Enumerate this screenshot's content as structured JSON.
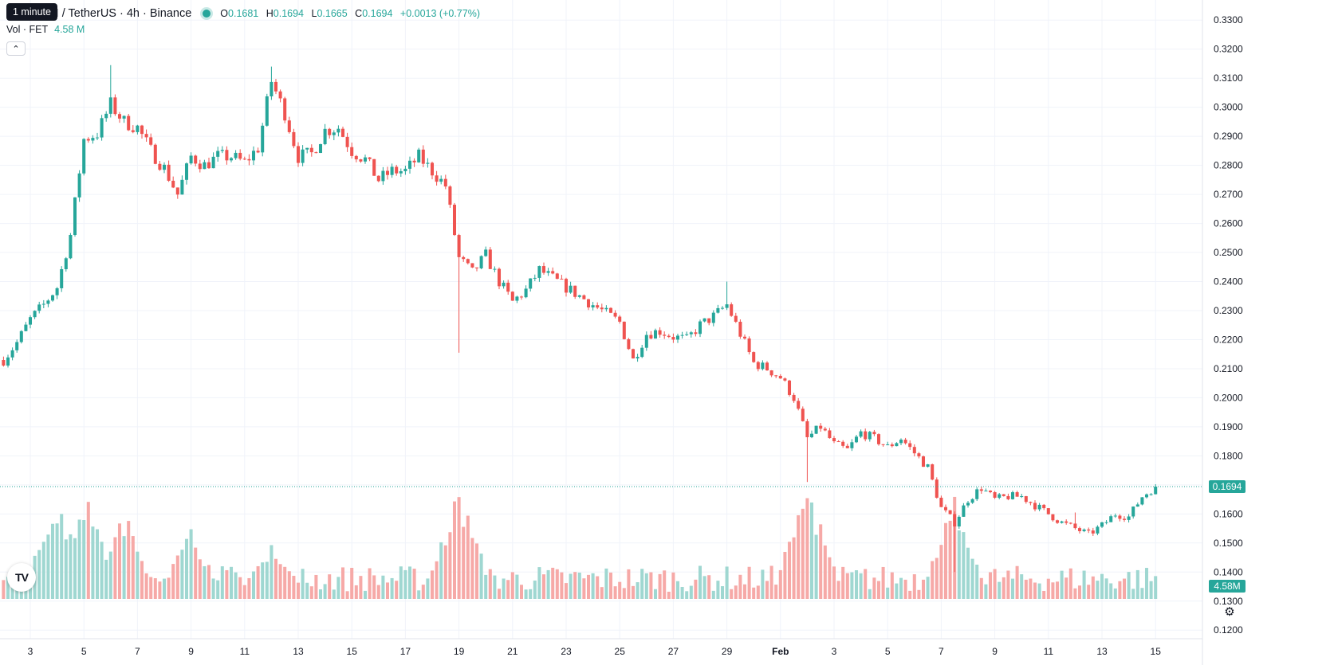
{
  "header": {
    "tooltip": "1 minute",
    "title": "AI / TetherUS · 4h · Binance",
    "ohlc": {
      "o_label": "O",
      "o": "0.1681",
      "h_label": "H",
      "h": "0.1694",
      "l_label": "L",
      "l": "0.1665",
      "c_label": "C",
      "c": "0.1694",
      "change": "+0.0013 (+0.77%)"
    },
    "volume_label": "Vol · FET",
    "volume_value": "4.58 M"
  },
  "price_tag": "0.1694",
  "volume_tag": "4.58M",
  "icons": {
    "collapse": "chevron-up-icon",
    "logo": "tradingview-logo",
    "settings": "gear-icon"
  },
  "colors": {
    "up": "#26a69a",
    "down": "#ef5350",
    "up_volume": "#9fd7d1",
    "down_volume": "#f6a9a7",
    "grid": "#f0f3fa"
  },
  "chart_data": {
    "type": "candlestick",
    "interval": "4h",
    "ylim": [
      0.125,
      0.335
    ],
    "y_ticks": [
      "0.3300",
      "0.3200",
      "0.3100",
      "0.3000",
      "0.2900",
      "0.2800",
      "0.2700",
      "0.2600",
      "0.2500",
      "0.2400",
      "0.2300",
      "0.2200",
      "0.2100",
      "0.2000",
      "0.1900",
      "0.1800",
      "0.1700",
      "0.1600",
      "0.1500",
      "0.1400",
      "0.1300",
      "0.1200"
    ],
    "x_ticks": [
      "3",
      "5",
      "7",
      "9",
      "11",
      "13",
      "15",
      "17",
      "19",
      "21",
      "23",
      "25",
      "27",
      "29",
      "Feb",
      "3",
      "5",
      "7",
      "9",
      "11",
      "13",
      "15"
    ],
    "last_price": 0.1694,
    "anchors": [
      {
        "day": 2.0,
        "price": 0.213
      },
      {
        "day": 2.5,
        "price": 0.219
      },
      {
        "day": 3.0,
        "price": 0.227
      },
      {
        "day": 3.5,
        "price": 0.232
      },
      {
        "day": 4.0,
        "price": 0.238
      },
      {
        "day": 4.5,
        "price": 0.256
      },
      {
        "day": 5.0,
        "price": 0.289
      },
      {
        "day": 5.5,
        "price": 0.291
      },
      {
        "day": 6.0,
        "price": 0.301
      },
      {
        "day": 6.5,
        "price": 0.295
      },
      {
        "day": 7.0,
        "price": 0.293
      },
      {
        "day": 7.5,
        "price": 0.285
      },
      {
        "day": 8.0,
        "price": 0.279
      },
      {
        "day": 8.5,
        "price": 0.27
      },
      {
        "day": 9.0,
        "price": 0.283
      },
      {
        "day": 9.5,
        "price": 0.28
      },
      {
        "day": 10.0,
        "price": 0.283
      },
      {
        "day": 10.5,
        "price": 0.283
      },
      {
        "day": 11.0,
        "price": 0.281
      },
      {
        "day": 11.5,
        "price": 0.286
      },
      {
        "day": 12.0,
        "price": 0.309
      },
      {
        "day": 12.5,
        "price": 0.298
      },
      {
        "day": 13.0,
        "price": 0.283
      },
      {
        "day": 13.5,
        "price": 0.284
      },
      {
        "day": 14.0,
        "price": 0.292
      },
      {
        "day": 14.5,
        "price": 0.293
      },
      {
        "day": 15.0,
        "price": 0.285
      },
      {
        "day": 15.5,
        "price": 0.282
      },
      {
        "day": 16.0,
        "price": 0.275
      },
      {
        "day": 16.5,
        "price": 0.278
      },
      {
        "day": 17.0,
        "price": 0.278
      },
      {
        "day": 17.5,
        "price": 0.283
      },
      {
        "day": 18.0,
        "price": 0.278
      },
      {
        "day": 18.5,
        "price": 0.273
      },
      {
        "day": 19.0,
        "price": 0.248
      },
      {
        "day": 19.5,
        "price": 0.243
      },
      {
        "day": 20.0,
        "price": 0.249
      },
      {
        "day": 20.5,
        "price": 0.24
      },
      {
        "day": 21.0,
        "price": 0.233
      },
      {
        "day": 21.5,
        "price": 0.237
      },
      {
        "day": 22.0,
        "price": 0.244
      },
      {
        "day": 22.5,
        "price": 0.241
      },
      {
        "day": 23.0,
        "price": 0.238
      },
      {
        "day": 23.5,
        "price": 0.235
      },
      {
        "day": 24.0,
        "price": 0.232
      },
      {
        "day": 24.5,
        "price": 0.229
      },
      {
        "day": 25.0,
        "price": 0.226
      },
      {
        "day": 25.5,
        "price": 0.213
      },
      {
        "day": 26.0,
        "price": 0.222
      },
      {
        "day": 26.5,
        "price": 0.223
      },
      {
        "day": 27.0,
        "price": 0.221
      },
      {
        "day": 27.5,
        "price": 0.22
      },
      {
        "day": 28.0,
        "price": 0.225
      },
      {
        "day": 28.5,
        "price": 0.228
      },
      {
        "day": 29.0,
        "price": 0.232
      },
      {
        "day": 29.5,
        "price": 0.222
      },
      {
        "day": 30.0,
        "price": 0.212
      },
      {
        "day": 30.5,
        "price": 0.21
      },
      {
        "day": 31.0,
        "price": 0.207
      },
      {
        "day": 31.5,
        "price": 0.2
      },
      {
        "day": 32.0,
        "price": 0.186
      },
      {
        "day": 32.5,
        "price": 0.19
      },
      {
        "day": 33.0,
        "price": 0.184
      },
      {
        "day": 33.5,
        "price": 0.182
      },
      {
        "day": 34.0,
        "price": 0.188
      },
      {
        "day": 34.5,
        "price": 0.186
      },
      {
        "day": 35.0,
        "price": 0.183
      },
      {
        "day": 35.5,
        "price": 0.186
      },
      {
        "day": 36.0,
        "price": 0.181
      },
      {
        "day": 36.5,
        "price": 0.176
      },
      {
        "day": 37.0,
        "price": 0.162
      },
      {
        "day": 37.5,
        "price": 0.157
      },
      {
        "day": 38.0,
        "price": 0.165
      },
      {
        "day": 38.5,
        "price": 0.169
      },
      {
        "day": 39.0,
        "price": 0.165
      },
      {
        "day": 39.5,
        "price": 0.166
      },
      {
        "day": 40.0,
        "price": 0.166
      },
      {
        "day": 40.5,
        "price": 0.163
      },
      {
        "day": 41.0,
        "price": 0.16
      },
      {
        "day": 41.5,
        "price": 0.157
      },
      {
        "day": 42.0,
        "price": 0.155
      },
      {
        "day": 42.5,
        "price": 0.153
      },
      {
        "day": 43.0,
        "price": 0.156
      },
      {
        "day": 43.5,
        "price": 0.16
      },
      {
        "day": 44.0,
        "price": 0.159
      },
      {
        "day": 44.5,
        "price": 0.166
      },
      {
        "day": 45.0,
        "price": 0.1694
      }
    ],
    "spikes": [
      {
        "day": 6.0,
        "high": 0.3145
      },
      {
        "day": 12.0,
        "high": 0.314
      },
      {
        "day": 19.0,
        "low": 0.2155
      },
      {
        "day": 29.0,
        "high": 0.24
      },
      {
        "day": 32.0,
        "low": 0.171
      },
      {
        "day": 37.5,
        "low": 0.14
      },
      {
        "day": 42.0,
        "high": 0.1605
      }
    ],
    "volume_peaks": [
      {
        "day": 4.0,
        "level": 0.9
      },
      {
        "day": 5.0,
        "level": 0.93
      },
      {
        "day": 6.5,
        "level": 0.75
      },
      {
        "day": 9.0,
        "level": 0.6
      },
      {
        "day": 12.0,
        "level": 0.5
      },
      {
        "day": 19.0,
        "level": 0.95
      },
      {
        "day": 32.0,
        "level": 1.0
      },
      {
        "day": 37.5,
        "level": 0.86
      }
    ]
  }
}
